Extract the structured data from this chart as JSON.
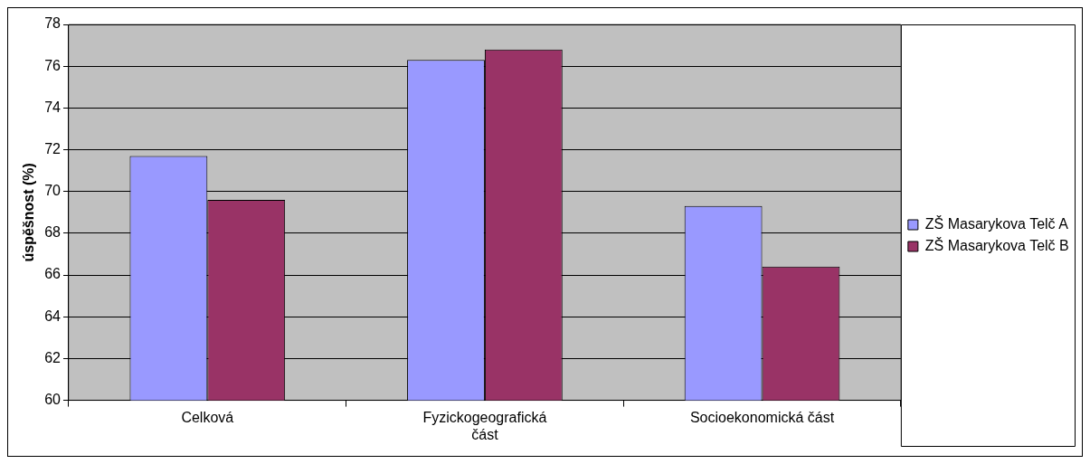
{
  "chart_data": {
    "type": "bar",
    "ylabel": "úspěšnost (%)",
    "categories": [
      "Celková",
      "Fyzickogeografická část",
      "Socioekonomická část"
    ],
    "series": [
      {
        "name": "ZŠ Masarykova Telč A",
        "color": "#9999ff",
        "values": [
          71.7,
          76.3,
          69.3
        ]
      },
      {
        "name": "ZŠ Masarykova Telč B",
        "color": "#993366",
        "values": [
          69.6,
          76.8,
          66.4
        ]
      }
    ],
    "ylim": [
      60,
      78
    ],
    "yticks": [
      60,
      62,
      64,
      66,
      68,
      70,
      72,
      74,
      76,
      78
    ],
    "grid": "y",
    "legend": "right"
  }
}
